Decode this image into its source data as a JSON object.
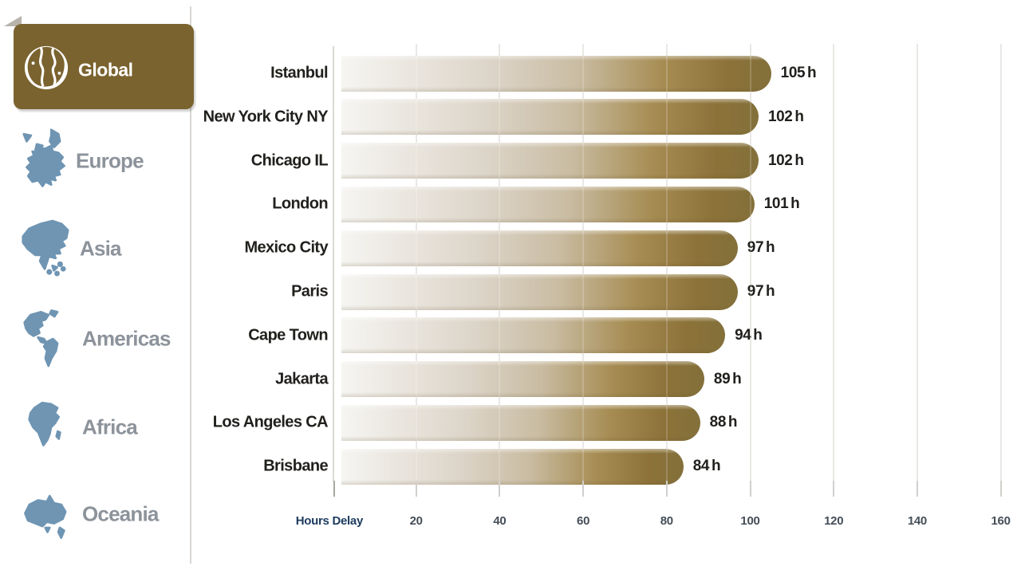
{
  "sidebar": {
    "active_bg": "#7a632f",
    "icon_color": "#6f95b3",
    "label_color": "#8c939b",
    "items": [
      {
        "id": "global",
        "label": "Global",
        "icon": "globe-icon",
        "active": true
      },
      {
        "id": "europe",
        "label": "Europe",
        "icon": "europe-map-icon",
        "active": false
      },
      {
        "id": "asia",
        "label": "Asia",
        "icon": "asia-map-icon",
        "active": false
      },
      {
        "id": "americas",
        "label": "Americas",
        "icon": "americas-map-icon",
        "active": false
      },
      {
        "id": "africa",
        "label": "Africa",
        "icon": "africa-map-icon",
        "active": false
      },
      {
        "id": "oceania",
        "label": "Oceania",
        "icon": "oceania-map-icon",
        "active": false
      }
    ]
  },
  "chart_data": {
    "type": "bar",
    "orientation": "horizontal",
    "categories": [
      "Istanbul",
      "New York City NY",
      "Chicago IL",
      "London",
      "Mexico City",
      "Paris",
      "Cape Town",
      "Jakarta",
      "Los Angeles CA",
      "Brisbane"
    ],
    "values": [
      105,
      102,
      102,
      101,
      97,
      97,
      94,
      89,
      88,
      84
    ],
    "unit": "h",
    "xlabel": "Hours Delay",
    "x_ticks": [
      20,
      40,
      60,
      80,
      100,
      120,
      140,
      160
    ],
    "xlim": [
      0,
      165
    ],
    "grid": true,
    "bar_gradient": [
      "#f6f5f2",
      "#dcd4c8",
      "#c9bca2",
      "#a68c52",
      "#8c7239",
      "#83703a"
    ]
  }
}
